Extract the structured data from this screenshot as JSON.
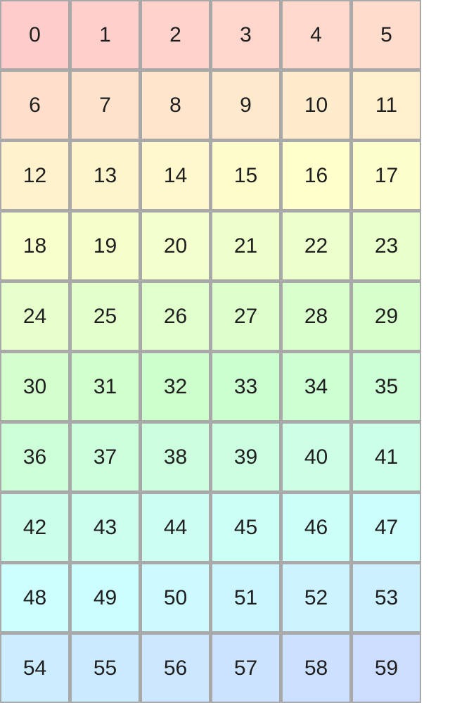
{
  "grid": {
    "columns": 6,
    "rows": 10,
    "gridline_color": "#a9a9a9",
    "page_background": "#ffffff",
    "text_color": "#1f1f1f",
    "cells": [
      {
        "label": "0",
        "color": "#ffcccc"
      },
      {
        "label": "1",
        "color": "#ffcfcc"
      },
      {
        "label": "2",
        "color": "#ffd2cc"
      },
      {
        "label": "3",
        "color": "#ffd6cc"
      },
      {
        "label": "4",
        "color": "#ffd9cc"
      },
      {
        "label": "5",
        "color": "#ffdccc"
      },
      {
        "label": "6",
        "color": "#ffdfcc"
      },
      {
        "label": "7",
        "color": "#ffe2cc"
      },
      {
        "label": "8",
        "color": "#ffe5cc"
      },
      {
        "label": "9",
        "color": "#ffe9cc"
      },
      {
        "label": "10",
        "color": "#ffeccc"
      },
      {
        "label": "11",
        "color": "#ffefcc"
      },
      {
        "label": "12",
        "color": "#fff2cc"
      },
      {
        "label": "13",
        "color": "#fff5cc"
      },
      {
        "label": "14",
        "color": "#fff8cc"
      },
      {
        "label": "15",
        "color": "#fffccc"
      },
      {
        "label": "16",
        "color": "#ffffcc"
      },
      {
        "label": "17",
        "color": "#fcffcc"
      },
      {
        "label": "18",
        "color": "#f9ffcc"
      },
      {
        "label": "19",
        "color": "#f6ffcc"
      },
      {
        "label": "20",
        "color": "#f3ffcc"
      },
      {
        "label": "21",
        "color": "#efffcc"
      },
      {
        "label": "22",
        "color": "#ecffcc"
      },
      {
        "label": "23",
        "color": "#e9ffcc"
      },
      {
        "label": "24",
        "color": "#e6ffcc"
      },
      {
        "label": "25",
        "color": "#e3ffcc"
      },
      {
        "label": "26",
        "color": "#e0ffcc"
      },
      {
        "label": "27",
        "color": "#dcffcc"
      },
      {
        "label": "28",
        "color": "#d9ffcc"
      },
      {
        "label": "29",
        "color": "#d6ffcc"
      },
      {
        "label": "30",
        "color": "#d3ffcc"
      },
      {
        "label": "31",
        "color": "#d0ffcc"
      },
      {
        "label": "32",
        "color": "#cdffcc"
      },
      {
        "label": "33",
        "color": "#ccffcf"
      },
      {
        "label": "34",
        "color": "#ccffd2"
      },
      {
        "label": "35",
        "color": "#ccffd5"
      },
      {
        "label": "36",
        "color": "#ccffd8"
      },
      {
        "label": "37",
        "color": "#ccffdb"
      },
      {
        "label": "38",
        "color": "#ccffde"
      },
      {
        "label": "39",
        "color": "#ccffe2"
      },
      {
        "label": "40",
        "color": "#ccffe5"
      },
      {
        "label": "41",
        "color": "#ccffe8"
      },
      {
        "label": "42",
        "color": "#ccffeb"
      },
      {
        "label": "43",
        "color": "#ccffee"
      },
      {
        "label": "44",
        "color": "#ccfff1"
      },
      {
        "label": "45",
        "color": "#ccfff5"
      },
      {
        "label": "46",
        "color": "#ccfff8"
      },
      {
        "label": "47",
        "color": "#ccfffb"
      },
      {
        "label": "48",
        "color": "#ccfffe"
      },
      {
        "label": "49",
        "color": "#ccfdff"
      },
      {
        "label": "50",
        "color": "#ccfaff"
      },
      {
        "label": "51",
        "color": "#ccf6ff"
      },
      {
        "label": "52",
        "color": "#ccf3ff"
      },
      {
        "label": "53",
        "color": "#ccf0ff"
      },
      {
        "label": "54",
        "color": "#ccedff"
      },
      {
        "label": "55",
        "color": "#cceaff"
      },
      {
        "label": "56",
        "color": "#cce7ff"
      },
      {
        "label": "57",
        "color": "#cce3ff"
      },
      {
        "label": "58",
        "color": "#cce0ff"
      },
      {
        "label": "59",
        "color": "#ccddff"
      }
    ]
  }
}
